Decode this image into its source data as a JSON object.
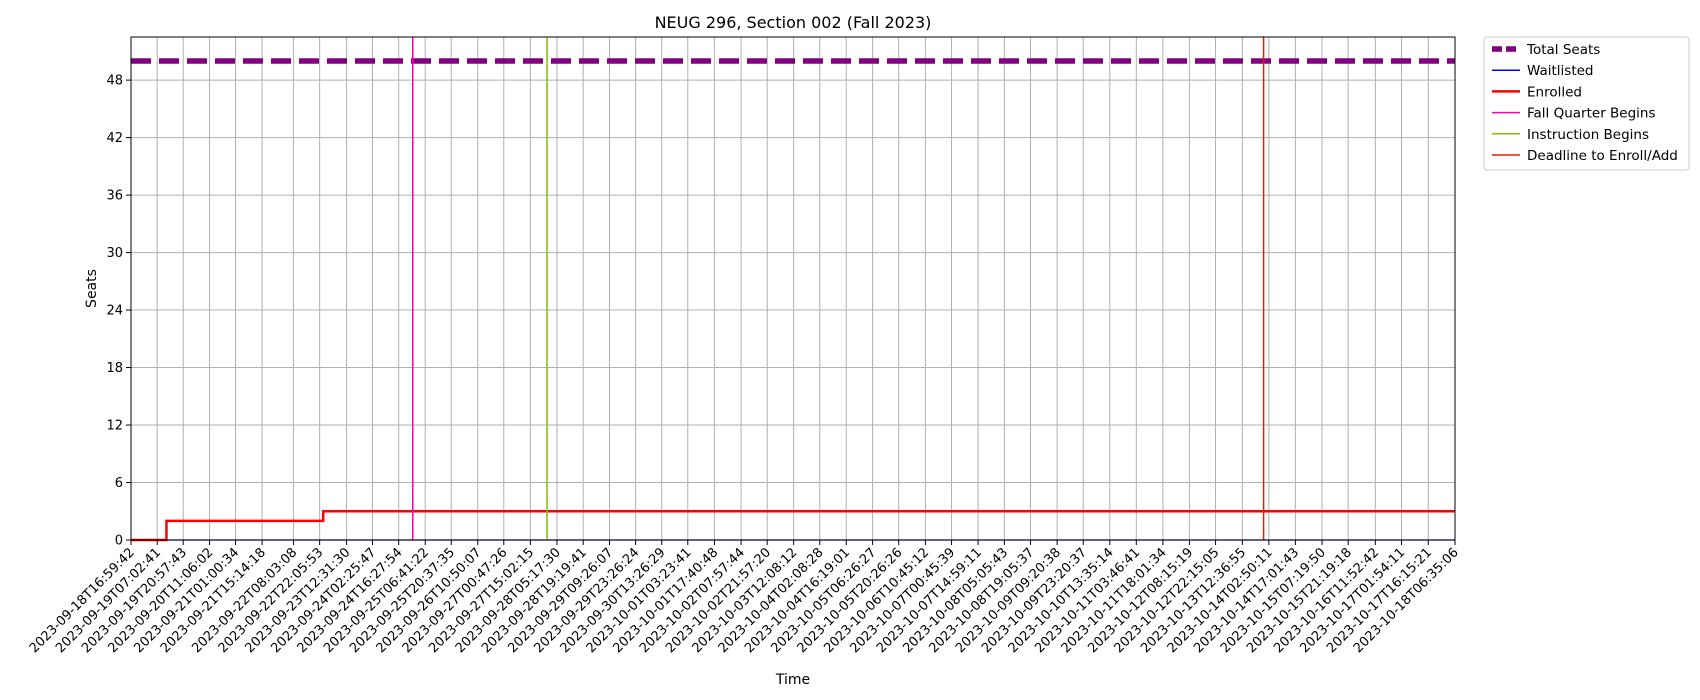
{
  "chart_data": {
    "type": "line",
    "title": "NEUG 296, Section 002 (Fall 2023)",
    "xlabel": "Time",
    "ylabel": "Seats",
    "ylim": [
      0,
      52.5
    ],
    "yticks": [
      0,
      6,
      12,
      18,
      24,
      30,
      36,
      42,
      48
    ],
    "grid": true,
    "legend_position": "outside-top-right",
    "x_tick_labels": [
      "2023-09-18T16:59:42",
      "2023-09-19T07:02:41",
      "2023-09-19T20:57:43",
      "2023-09-20T11:06:02",
      "2023-09-21T01:00:34",
      "2023-09-21T15:14:18",
      "2023-09-22T08:03:08",
      "2023-09-22T22:05:53",
      "2023-09-23T12:31:30",
      "2023-09-24T02:25:47",
      "2023-09-24T16:27:54",
      "2023-09-25T06:41:22",
      "2023-09-25T20:37:35",
      "2023-09-26T10:50:07",
      "2023-09-27T00:47:26",
      "2023-09-27T15:02:15",
      "2023-09-28T05:17:30",
      "2023-09-28T19:19:41",
      "2023-09-29T09:26:07",
      "2023-09-29T23:26:24",
      "2023-09-30T13:26:29",
      "2023-10-01T03:23:41",
      "2023-10-01T17:40:48",
      "2023-10-02T07:57:44",
      "2023-10-02T21:57:20",
      "2023-10-03T12:08:12",
      "2023-10-04T02:08:28",
      "2023-10-04T16:19:01",
      "2023-10-05T06:26:27",
      "2023-10-05T20:26:26",
      "2023-10-06T10:45:12",
      "2023-10-07T00:45:39",
      "2023-10-07T14:59:11",
      "2023-10-08T05:05:43",
      "2023-10-08T19:05:37",
      "2023-10-09T09:20:38",
      "2023-10-09T23:20:37",
      "2023-10-10T13:35:14",
      "2023-10-11T03:46:41",
      "2023-10-11T18:01:34",
      "2023-10-12T08:15:19",
      "2023-10-12T22:15:05",
      "2023-10-13T12:36:55",
      "2023-10-14T02:50:11",
      "2023-10-14T17:01:43",
      "2023-10-15T07:19:50",
      "2023-10-15T21:19:18",
      "2023-10-16T11:52:42",
      "2023-10-17T01:54:11",
      "2023-10-17T16:15:21",
      "2023-10-18T06:35:06"
    ],
    "series": [
      {
        "name": "Total Seats",
        "color": "#800080",
        "style": "dashed",
        "x": [
          "2023-09-18T16:59:42",
          "2023-10-18T06:35:06"
        ],
        "values": [
          50,
          50
        ]
      },
      {
        "name": "Waitlisted",
        "color": "#0000ff",
        "style": "solid",
        "x": [
          "2023-09-18T16:59:42",
          "2023-10-18T06:35:06"
        ],
        "values": [
          0,
          0
        ]
      },
      {
        "name": "Enrolled",
        "color": "#ff0000",
        "style": "step",
        "x": [
          "2023-09-18T16:59:42",
          "2023-09-19T12:00:00",
          "2023-09-23T00:00:00",
          "2023-10-18T06:35:06"
        ],
        "values": [
          0,
          2,
          3,
          3
        ]
      },
      {
        "name": "Fall Quarter Begins",
        "color": "#ff00aa",
        "style": "vline",
        "x": [
          "2023-09-25T00:00:00"
        ]
      },
      {
        "name": "Instruction Begins",
        "color": "#88bb00",
        "style": "vline",
        "x": [
          "2023-09-28T00:00:00"
        ]
      },
      {
        "name": "Deadline to Enroll/Add",
        "color": "#dd2200",
        "style": "vline",
        "x": [
          "2023-10-13T23:59:59"
        ]
      }
    ]
  }
}
